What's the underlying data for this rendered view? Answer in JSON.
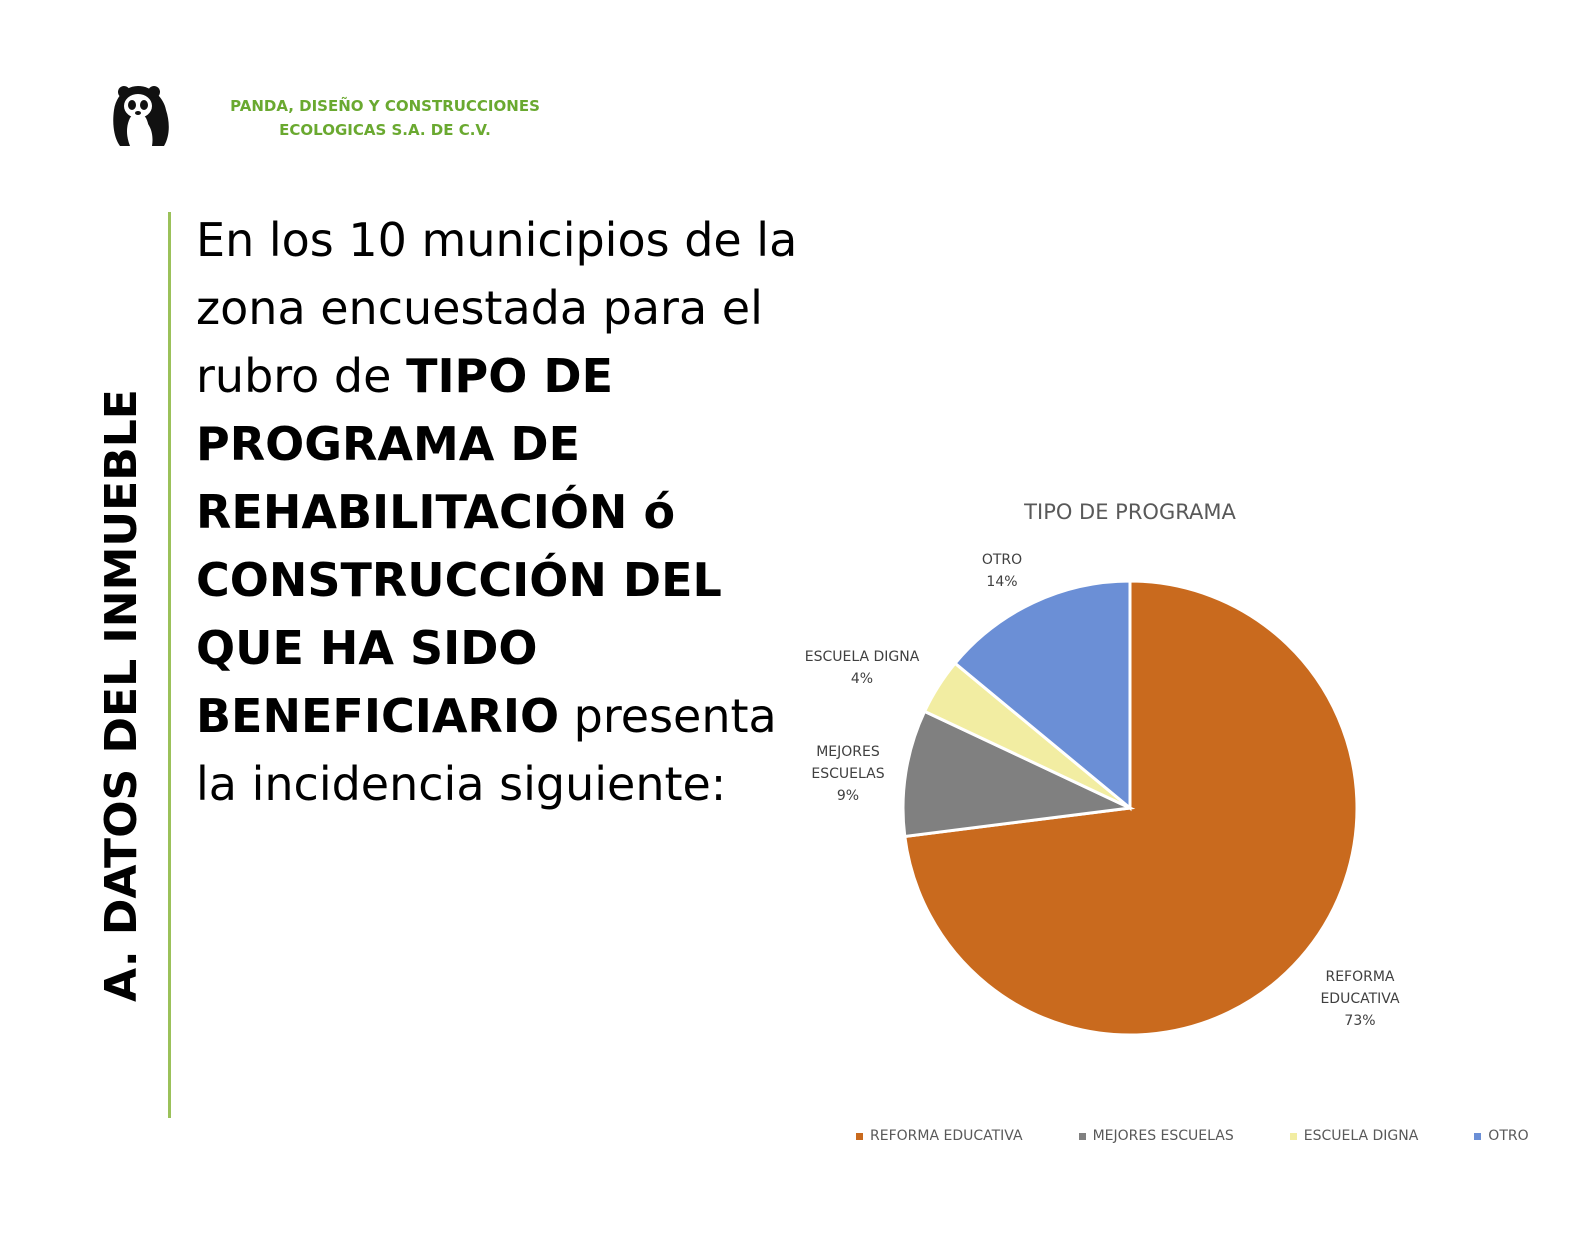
{
  "header": {
    "company_line1": "PANDA, DISEÑO Y CONSTRUCCIONES",
    "company_line2": "ECOLOGICAS S.A. DE C.V.",
    "logo_icon": "panda-logo-icon",
    "brand_color": "#6aa930"
  },
  "section": {
    "title": "A. DATOS DEL INMUEBLE"
  },
  "body": {
    "part1": "En los 10 municipios de la zona encuestada para el rubro de ",
    "bold": "TIPO DE PROGRAMA DE REHABILITACIÓN ó CONSTRUCCIÓN DEL QUE HA SIDO BENEFICIARIO",
    "part2": " presenta la incidencia siguiente:"
  },
  "chart_data": {
    "type": "pie",
    "title": "TIPO DE PROGRAMA",
    "start_angle_deg": 0,
    "direction": "clockwise",
    "legend_position": "bottom",
    "slices": [
      {
        "name": "REFORMA EDUCATIVA",
        "value": 73,
        "label_lines": [
          "REFORMA",
          "EDUCATIVA",
          "73%"
        ],
        "color": "#c96a1e"
      },
      {
        "name": "MEJORES ESCUELAS",
        "value": 9,
        "label_lines": [
          "MEJORES",
          "ESCUELAS",
          "9%"
        ],
        "color": "#808080"
      },
      {
        "name": "ESCUELA DIGNA",
        "value": 4,
        "label_lines": [
          "ESCUELA DIGNA",
          "4%"
        ],
        "color": "#f2eda2"
      },
      {
        "name": "OTRO",
        "value": 14,
        "label_lines": [
          "OTRO",
          "14%"
        ],
        "color": "#6b8fd6"
      }
    ]
  }
}
